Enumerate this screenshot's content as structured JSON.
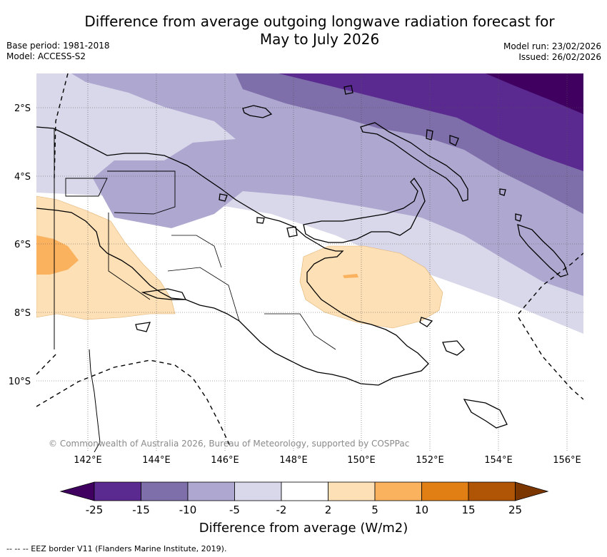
{
  "title": {
    "line1": "Difference from average outgoing longwave radiation forecast for",
    "line2": "May to July 2026"
  },
  "meta": {
    "base_period": "Base period: 1981-2018",
    "model": "Model: ACCESS-S2",
    "model_run": "Model run: 23/02/2026",
    "issued": "Issued: 26/02/2026"
  },
  "map": {
    "region": "Papua New Guinea",
    "lat_ticks": [
      "2°S",
      "4°S",
      "6°S",
      "8°S",
      "10°S"
    ],
    "lon_ticks": [
      "142°E",
      "144°E",
      "146°E",
      "148°E",
      "150°E",
      "152°E",
      "154°E",
      "156°E"
    ],
    "copyright": "© Commonwealth of Australia 2026, Bureau of Meteorology, supported by COSPPac",
    "land_color": "#ffffff",
    "coast_color": "#000000"
  },
  "colorbar": {
    "title": "Difference from average (W/m2)",
    "tick_labels": [
      "-25",
      "-15",
      "-10",
      "-5",
      "-2",
      "2",
      "5",
      "10",
      "15",
      "25"
    ],
    "colors": [
      "#3f0060",
      "#5a2a90",
      "#7e6eaa",
      "#aea7d0",
      "#d8d8ea",
      "#ffffff",
      "#fde0b6",
      "#fbb25e",
      "#e27f14",
      "#b05406",
      "#7b3600"
    ]
  },
  "footnote": "--  --  -- EEZ border V11 (Flanders Marine Institute, 2019)."
}
